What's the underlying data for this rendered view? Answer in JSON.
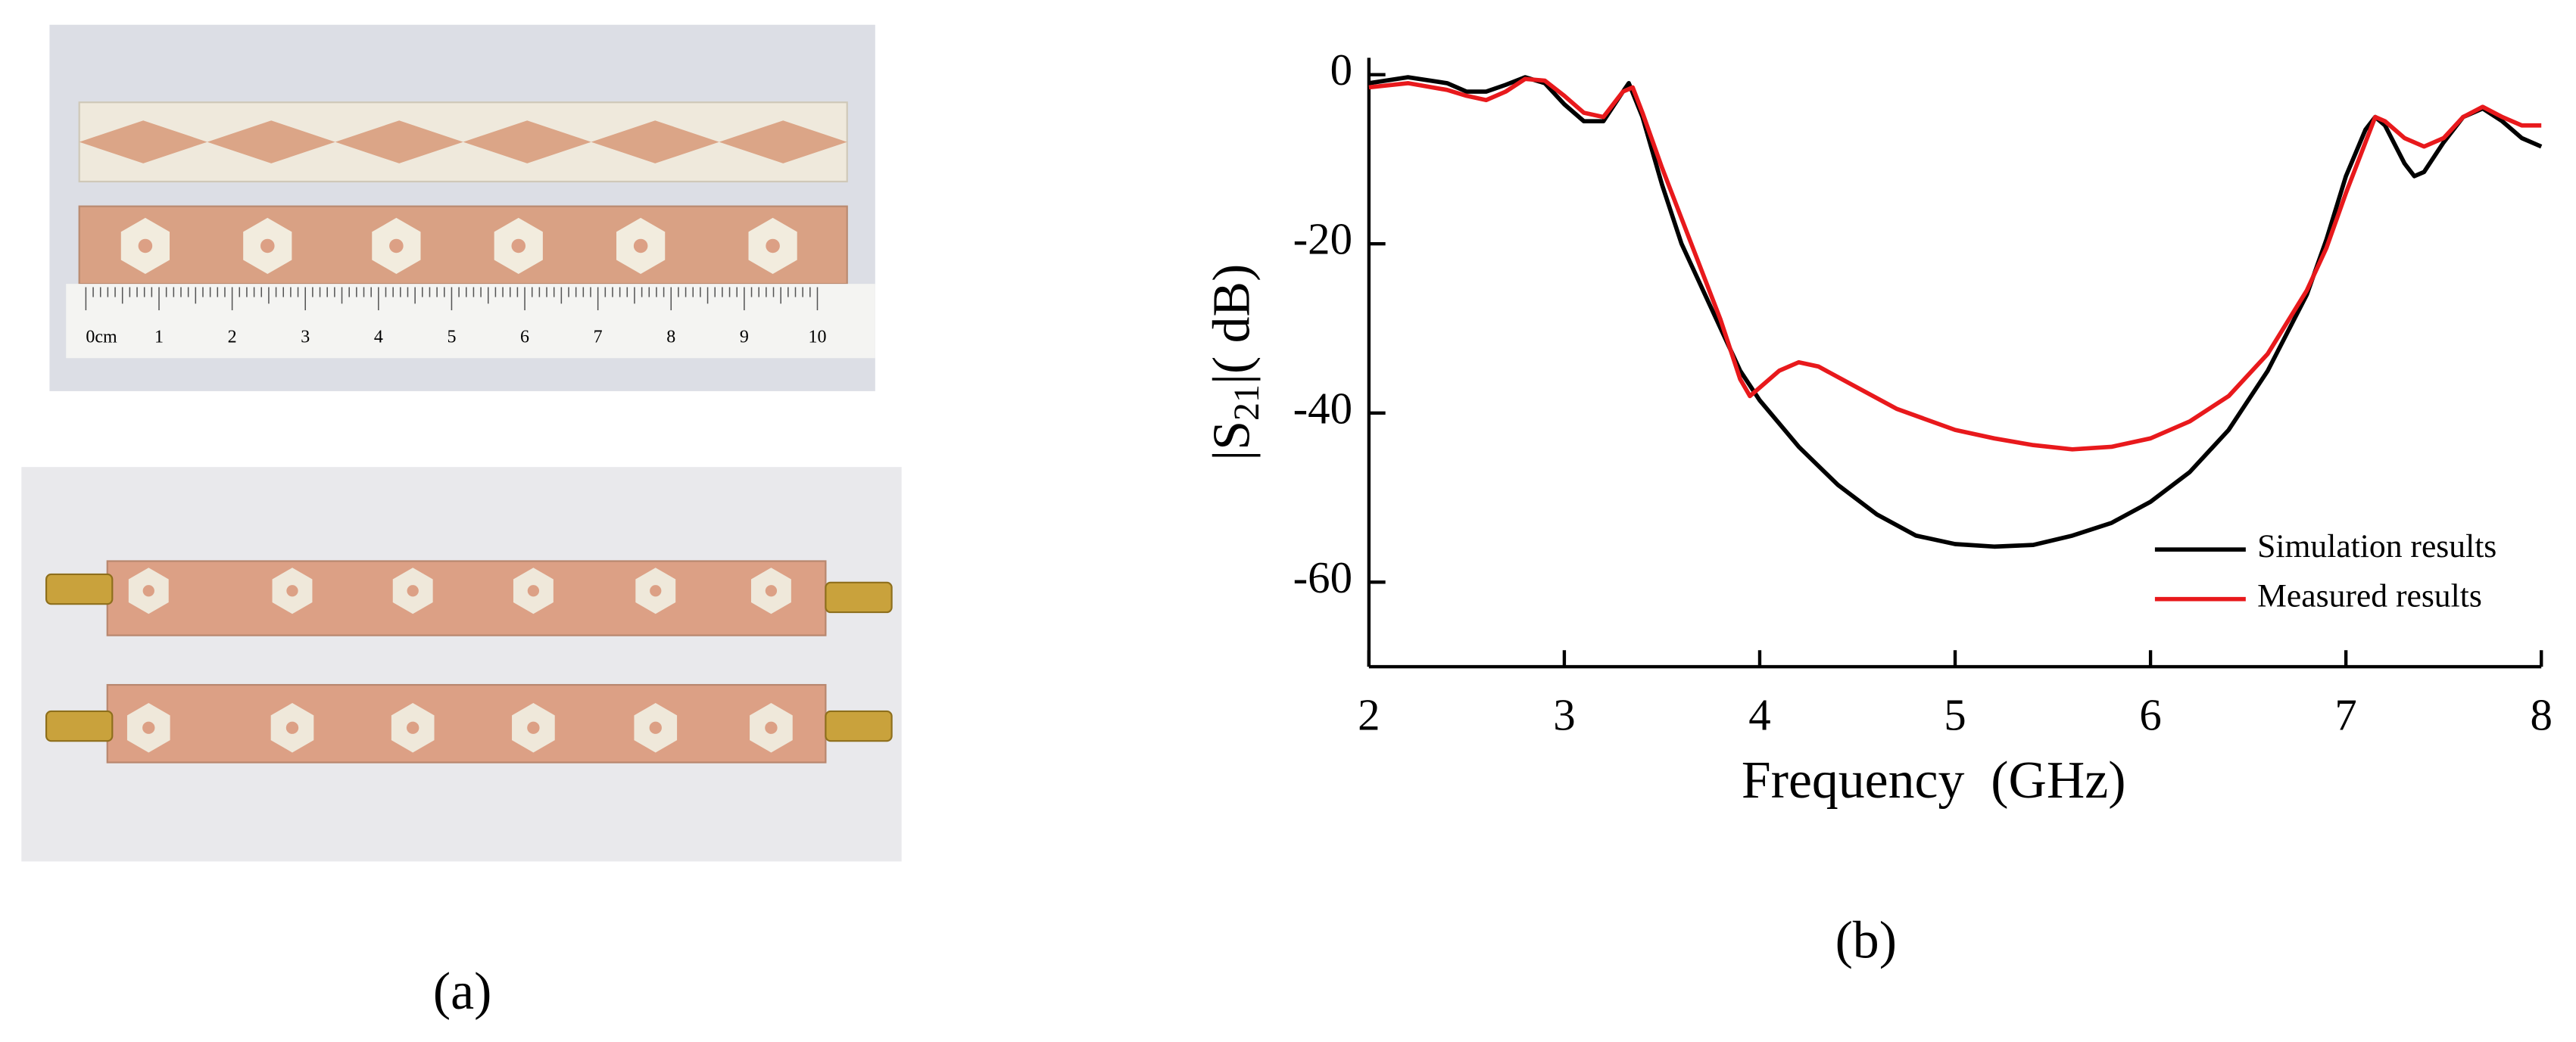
{
  "photo": {
    "ruler_labels": [
      "0cm",
      "1",
      "2",
      "3",
      "4",
      "5",
      "6",
      "7",
      "8",
      "9",
      "10"
    ]
  },
  "panel_labels": [
    "(a)",
    "(b)"
  ],
  "chart_data": {
    "type": "line",
    "xlabel": "Frequency  (GHz)",
    "ylabel_parts": [
      "|S",
      "21",
      "|( dB)"
    ],
    "xlim": [
      2,
      8
    ],
    "xticks": [
      2,
      3,
      4,
      5,
      6,
      7,
      8
    ],
    "ylim": [
      -70,
      2
    ],
    "yticks": [
      0,
      -20,
      -40,
      -60
    ],
    "legend": "lower right",
    "series": [
      {
        "name": "Simulation results",
        "color": "#000000",
        "x": [
          2.0,
          2.2,
          2.4,
          2.5,
          2.6,
          2.7,
          2.8,
          2.9,
          3.0,
          3.1,
          3.2,
          3.3,
          3.33,
          3.4,
          3.5,
          3.6,
          3.7,
          3.8,
          3.9,
          4.0,
          4.2,
          4.4,
          4.6,
          4.8,
          5.0,
          5.2,
          5.4,
          5.6,
          5.8,
          6.0,
          6.2,
          6.4,
          6.6,
          6.8,
          6.9,
          7.0,
          7.1,
          7.15,
          7.2,
          7.3,
          7.35,
          7.4,
          7.5,
          7.6,
          7.7,
          7.8,
          7.9,
          8.0
        ],
        "values": [
          -1,
          -0.3,
          -1,
          -2,
          -2,
          -1.2,
          -0.3,
          -1,
          -3.5,
          -5.5,
          -5.5,
          -2,
          -1,
          -5,
          -13,
          -20,
          -25,
          -30,
          -35,
          -38.5,
          -44,
          -48.5,
          -52,
          -54.5,
          -55.5,
          -55.8,
          -55.6,
          -54.5,
          -53,
          -50.5,
          -47,
          -42,
          -35,
          -26,
          -19.5,
          -12,
          -6.5,
          -5,
          -6,
          -10.5,
          -12,
          -11.5,
          -8,
          -5,
          -4,
          -5.5,
          -7.5,
          -8.5
        ]
      },
      {
        "name": "Measured results",
        "color": "#e8191c",
        "x": [
          2.0,
          2.2,
          2.4,
          2.5,
          2.6,
          2.7,
          2.8,
          2.9,
          3.0,
          3.1,
          3.2,
          3.3,
          3.35,
          3.4,
          3.5,
          3.6,
          3.7,
          3.8,
          3.9,
          3.95,
          4.0,
          4.1,
          4.2,
          4.3,
          4.5,
          4.7,
          5.0,
          5.2,
          5.4,
          5.6,
          5.8,
          6.0,
          6.2,
          6.4,
          6.6,
          6.8,
          6.9,
          7.0,
          7.1,
          7.15,
          7.2,
          7.3,
          7.4,
          7.5,
          7.6,
          7.7,
          7.8,
          7.9,
          8.0
        ],
        "values": [
          -1.5,
          -1,
          -1.8,
          -2.5,
          -3,
          -2,
          -0.5,
          -0.7,
          -2.5,
          -4.5,
          -5,
          -2,
          -1.5,
          -4.5,
          -11,
          -17,
          -23,
          -29,
          -36,
          -38,
          -37,
          -35,
          -34,
          -34.5,
          -37,
          -39.5,
          -42,
          -43,
          -43.8,
          -44.3,
          -44,
          -43,
          -41,
          -38,
          -33,
          -25.5,
          -20.5,
          -14,
          -8,
          -5,
          -5.5,
          -7.5,
          -8.5,
          -7.5,
          -5,
          -3.8,
          -5,
          -6,
          -6
        ]
      }
    ]
  }
}
